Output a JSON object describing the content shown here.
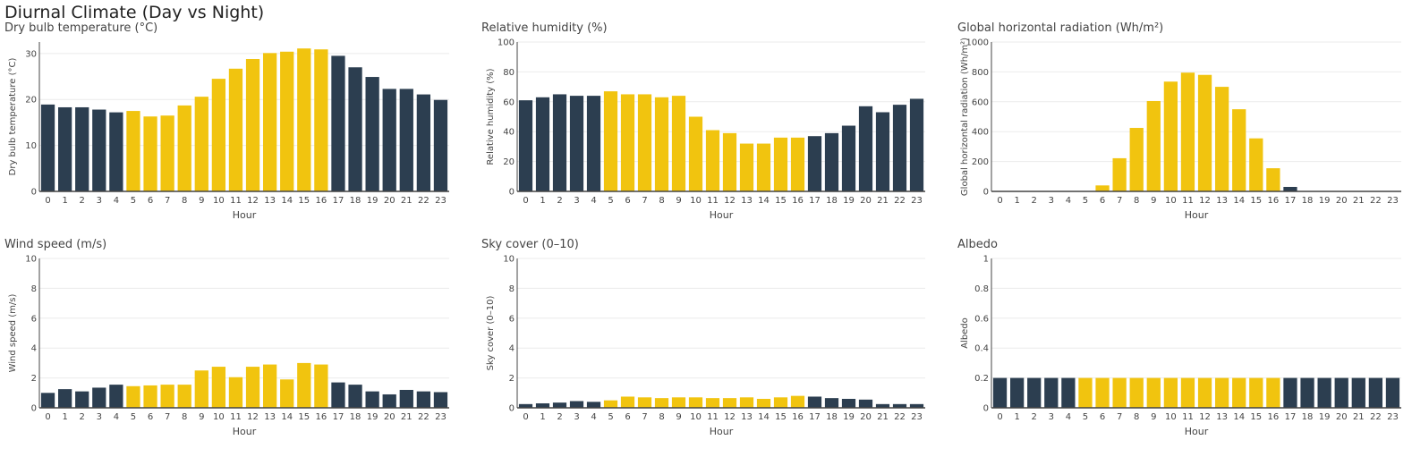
{
  "main_title": "Diurnal Climate (Day vs Night)",
  "colors": {
    "day": "#F1C40F",
    "night": "#2C3E50",
    "grid": "#ebebeb",
    "axis": "#444444"
  },
  "chart_data": [
    {
      "type": "bar",
      "title": "Dry bulb temperature (°C)",
      "xlabel": "Hour",
      "ylabel": "Dry bulb temperature (°C)",
      "categories": [
        "0",
        "1",
        "2",
        "3",
        "4",
        "5",
        "6",
        "7",
        "8",
        "9",
        "10",
        "11",
        "12",
        "13",
        "14",
        "15",
        "16",
        "17",
        "18",
        "19",
        "20",
        "21",
        "22",
        "23"
      ],
      "values": [
        18.9,
        18.3,
        18.3,
        17.8,
        17.2,
        17.5,
        16.3,
        16.5,
        18.7,
        20.6,
        24.5,
        26.7,
        28.8,
        30.1,
        30.4,
        31.1,
        30.9,
        29.5,
        27.0,
        24.9,
        22.3,
        22.3,
        21.1,
        19.9
      ],
      "day": [
        false,
        false,
        false,
        false,
        false,
        true,
        true,
        true,
        true,
        true,
        true,
        true,
        true,
        true,
        true,
        true,
        true,
        false,
        false,
        false,
        false,
        false,
        false,
        false
      ],
      "ylim": [
        0,
        32.5
      ],
      "yticks": [
        0,
        10,
        20,
        30
      ],
      "grid": true
    },
    {
      "type": "bar",
      "title": "Relative humidity (%)",
      "xlabel": "Hour",
      "ylabel": "Relative humidity (%)",
      "categories": [
        "0",
        "1",
        "2",
        "3",
        "4",
        "5",
        "6",
        "7",
        "8",
        "9",
        "10",
        "11",
        "12",
        "13",
        "14",
        "15",
        "16",
        "17",
        "18",
        "19",
        "20",
        "21",
        "22",
        "23"
      ],
      "values": [
        61,
        63,
        65,
        64,
        64,
        67,
        65,
        65,
        63,
        64,
        50,
        41,
        39,
        32,
        32,
        36,
        36,
        37,
        39,
        44,
        57,
        53,
        58,
        62
      ],
      "day": [
        false,
        false,
        false,
        false,
        false,
        true,
        true,
        true,
        true,
        true,
        true,
        true,
        true,
        true,
        true,
        true,
        true,
        false,
        false,
        false,
        false,
        false,
        false,
        false
      ],
      "ylim": [
        0,
        100
      ],
      "yticks": [
        0,
        20,
        40,
        60,
        80,
        100
      ],
      "grid": true
    },
    {
      "type": "bar",
      "title": "Global horizontal radiation (Wh/m²)",
      "xlabel": "Hour",
      "ylabel": "Global horizontal radiation (Wh/m²)",
      "categories": [
        "0",
        "1",
        "2",
        "3",
        "4",
        "5",
        "6",
        "7",
        "8",
        "9",
        "10",
        "11",
        "12",
        "13",
        "14",
        "15",
        "16",
        "17",
        "18",
        "19",
        "20",
        "21",
        "22",
        "23"
      ],
      "values": [
        0,
        0,
        0,
        0,
        0,
        0,
        40,
        222,
        425,
        605,
        735,
        795,
        780,
        700,
        550,
        355,
        155,
        30,
        0,
        0,
        0,
        0,
        0,
        0
      ],
      "day": [
        false,
        false,
        false,
        false,
        false,
        true,
        true,
        true,
        true,
        true,
        true,
        true,
        true,
        true,
        true,
        true,
        true,
        false,
        false,
        false,
        false,
        false,
        false,
        false
      ],
      "ylim": [
        0,
        1000
      ],
      "yticks": [
        0,
        200,
        400,
        600,
        800,
        1000
      ],
      "grid": true
    },
    {
      "type": "bar",
      "title": "Wind speed (m/s)",
      "xlabel": "Hour",
      "ylabel": "Wind speed (m/s)",
      "categories": [
        "0",
        "1",
        "2",
        "3",
        "4",
        "5",
        "6",
        "7",
        "8",
        "9",
        "10",
        "11",
        "12",
        "13",
        "14",
        "15",
        "16",
        "17",
        "18",
        "19",
        "20",
        "21",
        "22",
        "23"
      ],
      "values": [
        1.0,
        1.25,
        1.1,
        1.35,
        1.55,
        1.45,
        1.5,
        1.55,
        1.55,
        2.5,
        2.75,
        2.05,
        2.75,
        2.9,
        1.9,
        3.0,
        2.9,
        1.7,
        1.55,
        1.1,
        0.9,
        1.2,
        1.1,
        1.05
      ],
      "day": [
        false,
        false,
        false,
        false,
        false,
        true,
        true,
        true,
        true,
        true,
        true,
        true,
        true,
        true,
        true,
        true,
        true,
        false,
        false,
        false,
        false,
        false,
        false,
        false
      ],
      "ylim": [
        0,
        10
      ],
      "yticks": [
        0,
        2,
        4,
        6,
        8,
        10
      ],
      "grid": true
    },
    {
      "type": "bar",
      "title": "Sky cover (0–10)",
      "xlabel": "Hour",
      "ylabel": "Sky cover (0–10)",
      "categories": [
        "0",
        "1",
        "2",
        "3",
        "4",
        "5",
        "6",
        "7",
        "8",
        "9",
        "10",
        "11",
        "12",
        "13",
        "14",
        "15",
        "16",
        "17",
        "18",
        "19",
        "20",
        "21",
        "22",
        "23"
      ],
      "values": [
        0.25,
        0.3,
        0.35,
        0.45,
        0.4,
        0.5,
        0.75,
        0.7,
        0.65,
        0.7,
        0.7,
        0.65,
        0.65,
        0.7,
        0.6,
        0.7,
        0.8,
        0.75,
        0.65,
        0.6,
        0.55,
        0.25,
        0.25,
        0.25
      ],
      "day": [
        false,
        false,
        false,
        false,
        false,
        true,
        true,
        true,
        true,
        true,
        true,
        true,
        true,
        true,
        true,
        true,
        true,
        false,
        false,
        false,
        false,
        false,
        false,
        false
      ],
      "ylim": [
        0,
        10
      ],
      "yticks": [
        0,
        2,
        4,
        6,
        8,
        10
      ],
      "grid": true
    },
    {
      "type": "bar",
      "title": "Albedo",
      "xlabel": "Hour",
      "ylabel": "Albedo",
      "categories": [
        "0",
        "1",
        "2",
        "3",
        "4",
        "5",
        "6",
        "7",
        "8",
        "9",
        "10",
        "11",
        "12",
        "13",
        "14",
        "15",
        "16",
        "17",
        "18",
        "19",
        "20",
        "21",
        "22",
        "23"
      ],
      "values": [
        0.2,
        0.2,
        0.2,
        0.2,
        0.2,
        0.2,
        0.2,
        0.2,
        0.2,
        0.2,
        0.2,
        0.2,
        0.2,
        0.2,
        0.2,
        0.2,
        0.2,
        0.2,
        0.2,
        0.2,
        0.2,
        0.2,
        0.2,
        0.2
      ],
      "day": [
        false,
        false,
        false,
        false,
        false,
        true,
        true,
        true,
        true,
        true,
        true,
        true,
        true,
        true,
        true,
        true,
        true,
        false,
        false,
        false,
        false,
        false,
        false,
        false
      ],
      "ylim": [
        0,
        1
      ],
      "yticks": [
        0,
        0.2,
        0.4,
        0.6,
        0.8,
        1
      ],
      "grid": true
    }
  ]
}
